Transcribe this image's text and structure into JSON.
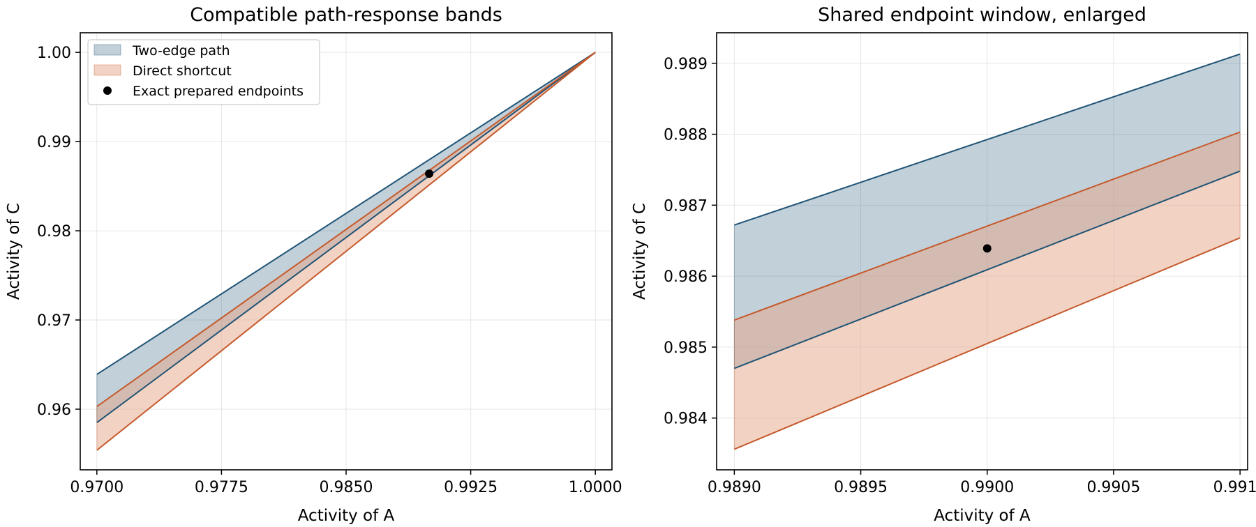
{
  "colors": {
    "two_edge": "#1f5375",
    "two_edge_fill": "#1f5375",
    "direct": "#c45a2c",
    "direct_fill": "#e5a587",
    "point": "#000000",
    "grid": "#e6e6e6"
  },
  "legend": {
    "two_edge": "Two-edge path",
    "direct": "Direct shortcut",
    "point": "Exact prepared endpoints",
    "placement": "upper-left"
  },
  "chart_data": [
    {
      "type": "area",
      "title": "Compatible path-response bands",
      "xlabel": "Activity of A",
      "ylabel": "Activity of C",
      "xlim": [
        0.969,
        1.001
      ],
      "ylim": [
        0.9532,
        1.0022
      ],
      "grid": true,
      "xticks": [
        0.97,
        0.9775,
        0.985,
        0.9925,
        1.0
      ],
      "xtick_labels": [
        "0.9700",
        "0.9775",
        "0.9850",
        "0.9925",
        "1.0000"
      ],
      "yticks": [
        0.96,
        0.97,
        0.98,
        0.99,
        1.0
      ],
      "ytick_labels": [
        "0.96",
        "0.97",
        "0.98",
        "0.99",
        "1.00"
      ],
      "series": [
        {
          "name": "Two-edge path",
          "x": [
            0.97,
            1.0
          ],
          "upper": [
            0.9639,
            1.0
          ],
          "lower": [
            0.9585,
            1.0
          ]
        },
        {
          "name": "Direct shortcut",
          "x": [
            0.97,
            1.0
          ],
          "upper": [
            0.9603,
            1.0
          ],
          "lower": [
            0.9554,
            1.0
          ]
        }
      ],
      "points": [
        {
          "name": "Exact prepared endpoints",
          "x": 0.99,
          "y": 0.9864
        }
      ]
    },
    {
      "type": "area",
      "title": "Shared endpoint window, enlarged",
      "xlabel": "Activity of A",
      "ylabel": "Activity of C",
      "xlim": [
        0.98893,
        0.99103
      ],
      "ylim": [
        0.98327,
        0.98943
      ],
      "grid": true,
      "xticks": [
        0.989,
        0.9895,
        0.99,
        0.9905,
        0.991
      ],
      "xtick_labels": [
        "0.9890",
        "0.9895",
        "0.9900",
        "0.9905",
        "0.9910"
      ],
      "yticks": [
        0.984,
        0.985,
        0.986,
        0.987,
        0.988,
        0.989
      ],
      "ytick_labels": [
        "0.984",
        "0.985",
        "0.986",
        "0.987",
        "0.988",
        "0.989"
      ],
      "series": [
        {
          "name": "Two-edge path",
          "x": [
            0.989,
            0.991
          ],
          "upper": [
            0.98672,
            0.98913
          ],
          "lower": [
            0.9847,
            0.98748
          ]
        },
        {
          "name": "Direct shortcut",
          "x": [
            0.989,
            0.991
          ],
          "upper": [
            0.98538,
            0.98803
          ],
          "lower": [
            0.98356,
            0.98654
          ]
        }
      ],
      "points": [
        {
          "name": "Exact prepared endpoints",
          "x": 0.99,
          "y": 0.98639
        }
      ]
    }
  ]
}
